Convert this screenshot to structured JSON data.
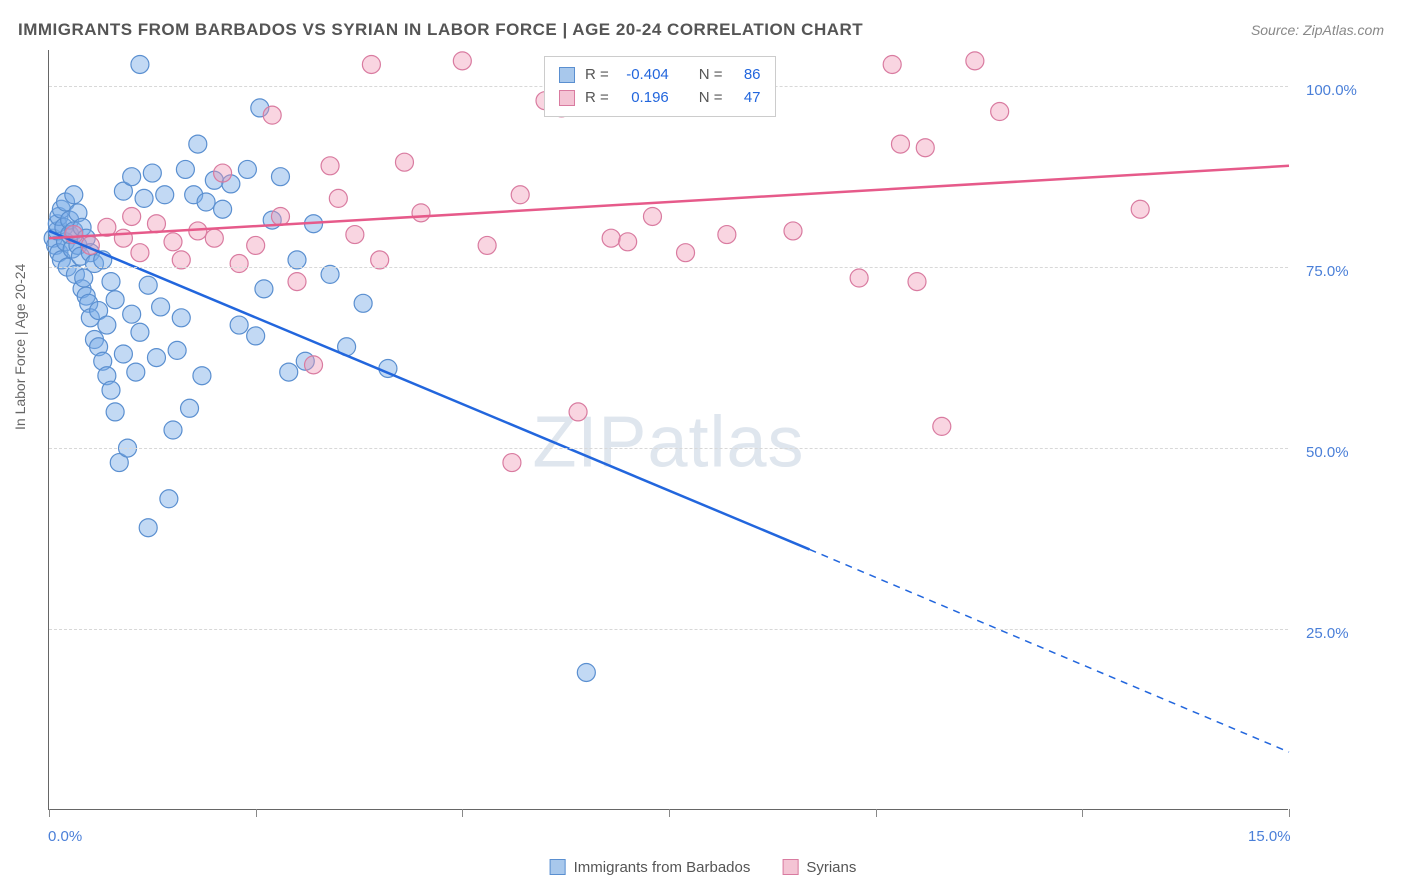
{
  "title": "IMMIGRANTS FROM BARBADOS VS SYRIAN IN LABOR FORCE | AGE 20-24 CORRELATION CHART",
  "source": "Source: ZipAtlas.com",
  "y_axis_title": "In Labor Force | Age 20-24",
  "watermark_zip": "ZIP",
  "watermark_atlas": "atlas",
  "chart": {
    "type": "scatter",
    "xlim": [
      0,
      15
    ],
    "ylim": [
      0,
      105
    ],
    "x_ticks": [
      0,
      2.5,
      5.0,
      7.5,
      10.0,
      12.5,
      15.0
    ],
    "x_tick_labels_shown": {
      "0": "0.0%",
      "15": "15.0%"
    },
    "y_ticks": [
      25,
      50,
      75,
      100
    ],
    "y_tick_labels": {
      "25": "25.0%",
      "50": "50.0%",
      "75": "75.0%",
      "100": "100.0%"
    },
    "background_color": "#ffffff",
    "grid_color": "#d8d8d8",
    "axis_color": "#666666",
    "tick_label_color": "#4a7fd8",
    "marker_radius": 9,
    "marker_stroke_width": 1.2,
    "trend_line_width": 2.5
  },
  "series": [
    {
      "name": "Immigrants from Barbados",
      "key": "barbados",
      "color_fill": "rgba(120,170,230,0.45)",
      "color_stroke": "#5a8fd0",
      "swatch_fill": "#a8c8ec",
      "swatch_stroke": "#5a8fd0",
      "R": "-0.404",
      "N": "86",
      "trend": {
        "x1": 0,
        "y1": 80,
        "x2_solid": 9.2,
        "y2_solid": 36,
        "x2_dash": 15,
        "y2_dash": 8,
        "color": "#2266dd"
      },
      "points": [
        [
          0.05,
          79
        ],
        [
          0.08,
          78
        ],
        [
          0.1,
          80
        ],
        [
          0.1,
          81
        ],
        [
          0.12,
          77
        ],
        [
          0.12,
          82
        ],
        [
          0.15,
          76
        ],
        [
          0.15,
          83
        ],
        [
          0.18,
          80.5
        ],
        [
          0.2,
          78.5
        ],
        [
          0.2,
          84
        ],
        [
          0.22,
          75
        ],
        [
          0.25,
          79.5
        ],
        [
          0.25,
          81.5
        ],
        [
          0.28,
          77.5
        ],
        [
          0.3,
          80
        ],
        [
          0.3,
          85
        ],
        [
          0.32,
          74
        ],
        [
          0.35,
          78
        ],
        [
          0.35,
          82.5
        ],
        [
          0.38,
          76.5
        ],
        [
          0.4,
          72
        ],
        [
          0.4,
          80.5
        ],
        [
          0.42,
          73.5
        ],
        [
          0.45,
          71
        ],
        [
          0.45,
          79
        ],
        [
          0.48,
          70
        ],
        [
          0.5,
          68
        ],
        [
          0.5,
          77
        ],
        [
          0.55,
          65
        ],
        [
          0.55,
          75.5
        ],
        [
          0.6,
          64
        ],
        [
          0.6,
          69
        ],
        [
          0.65,
          62
        ],
        [
          0.65,
          76
        ],
        [
          0.7,
          60
        ],
        [
          0.7,
          67
        ],
        [
          0.75,
          58
        ],
        [
          0.75,
          73
        ],
        [
          0.8,
          55
        ],
        [
          0.8,
          70.5
        ],
        [
          0.85,
          48
        ],
        [
          0.9,
          63
        ],
        [
          0.9,
          85.5
        ],
        [
          0.95,
          50
        ],
        [
          1.0,
          68.5
        ],
        [
          1.0,
          87.5
        ],
        [
          1.05,
          60.5
        ],
        [
          1.1,
          103
        ],
        [
          1.1,
          66
        ],
        [
          1.15,
          84.5
        ],
        [
          1.2,
          39
        ],
        [
          1.2,
          72.5
        ],
        [
          1.25,
          88
        ],
        [
          1.3,
          62.5
        ],
        [
          1.35,
          69.5
        ],
        [
          1.4,
          85
        ],
        [
          1.45,
          43
        ],
        [
          1.5,
          52.5
        ],
        [
          1.55,
          63.5
        ],
        [
          1.6,
          68
        ],
        [
          1.65,
          88.5
        ],
        [
          1.7,
          55.5
        ],
        [
          1.75,
          85
        ],
        [
          1.8,
          92
        ],
        [
          1.85,
          60
        ],
        [
          1.9,
          84
        ],
        [
          2.0,
          87
        ],
        [
          2.1,
          83
        ],
        [
          2.2,
          86.5
        ],
        [
          2.3,
          67
        ],
        [
          2.4,
          88.5
        ],
        [
          2.5,
          65.5
        ],
        [
          2.55,
          97
        ],
        [
          2.6,
          72
        ],
        [
          2.7,
          81.5
        ],
        [
          2.8,
          87.5
        ],
        [
          2.9,
          60.5
        ],
        [
          3.0,
          76
        ],
        [
          3.1,
          62
        ],
        [
          3.2,
          81
        ],
        [
          3.4,
          74
        ],
        [
          3.6,
          64
        ],
        [
          3.8,
          70
        ],
        [
          4.1,
          61
        ],
        [
          6.5,
          19
        ]
      ]
    },
    {
      "name": "Syrians",
      "key": "syrians",
      "color_fill": "rgba(240,150,180,0.40)",
      "color_stroke": "#d97ba0",
      "swatch_fill": "#f4c4d4",
      "swatch_stroke": "#d97ba0",
      "R": "0.196",
      "N": "47",
      "trend": {
        "x1": 0,
        "y1": 79,
        "x2_solid": 15,
        "y2_solid": 89,
        "x2_dash": 15,
        "y2_dash": 89,
        "color": "#e65a8a"
      },
      "points": [
        [
          0.3,
          79.5
        ],
        [
          0.5,
          78
        ],
        [
          0.7,
          80.5
        ],
        [
          0.9,
          79
        ],
        [
          1.0,
          82
        ],
        [
          1.1,
          77
        ],
        [
          1.3,
          81
        ],
        [
          1.5,
          78.5
        ],
        [
          1.6,
          76
        ],
        [
          1.8,
          80
        ],
        [
          2.0,
          79
        ],
        [
          2.1,
          88
        ],
        [
          2.3,
          75.5
        ],
        [
          2.5,
          78
        ],
        [
          2.7,
          96
        ],
        [
          2.8,
          82
        ],
        [
          3.0,
          73
        ],
        [
          3.2,
          61.5
        ],
        [
          3.4,
          89
        ],
        [
          3.5,
          84.5
        ],
        [
          3.7,
          79.5
        ],
        [
          3.9,
          103
        ],
        [
          4.0,
          76
        ],
        [
          4.3,
          89.5
        ],
        [
          4.5,
          82.5
        ],
        [
          5.0,
          103.5
        ],
        [
          5.3,
          78
        ],
        [
          5.6,
          48
        ],
        [
          5.7,
          85
        ],
        [
          6.0,
          98
        ],
        [
          6.2,
          97
        ],
        [
          6.4,
          55
        ],
        [
          6.8,
          79
        ],
        [
          7.0,
          78.5
        ],
        [
          7.3,
          82
        ],
        [
          7.7,
          77
        ],
        [
          8.2,
          79.5
        ],
        [
          9.0,
          80
        ],
        [
          9.8,
          73.5
        ],
        [
          10.2,
          103
        ],
        [
          10.3,
          92
        ],
        [
          10.5,
          73
        ],
        [
          10.6,
          91.5
        ],
        [
          10.8,
          53
        ],
        [
          11.2,
          103.5
        ],
        [
          11.5,
          96.5
        ],
        [
          13.2,
          83
        ]
      ]
    }
  ],
  "stats_box": {
    "r_label": "R =",
    "n_label": "N ="
  },
  "legend_bottom": {
    "items": [
      "Immigrants from Barbados",
      "Syrians"
    ]
  }
}
